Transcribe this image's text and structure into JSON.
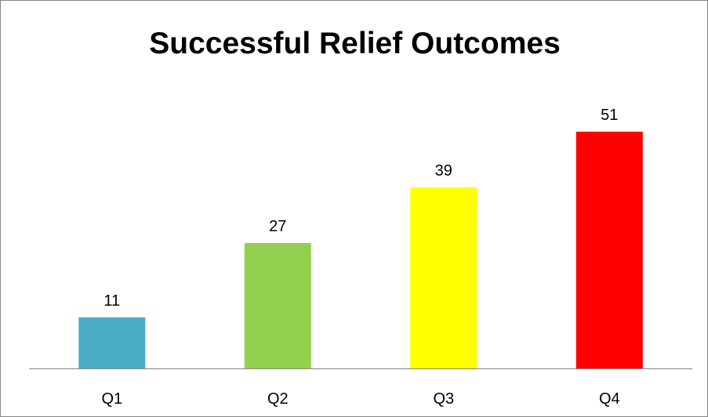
{
  "chart_data": {
    "type": "bar",
    "title": "Successful Relief Outcomes",
    "categories": [
      "Q1",
      "Q2",
      "Q3",
      "Q4"
    ],
    "values": [
      11,
      27,
      39,
      51
    ],
    "colors": [
      "#4bacc6",
      "#92d050",
      "#ffff00",
      "#ff0000"
    ],
    "xlabel": "",
    "ylabel": "",
    "ylim": [
      0,
      51
    ],
    "grid": false,
    "legend": "none",
    "data_labels": true
  }
}
